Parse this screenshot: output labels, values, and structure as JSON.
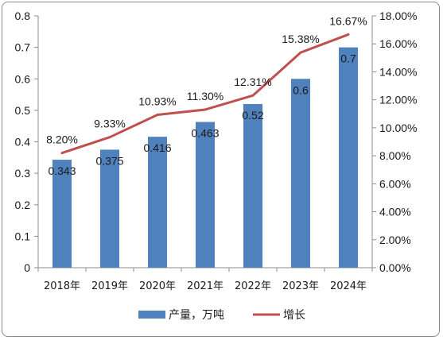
{
  "chart_data": {
    "type": "bar",
    "categories": [
      "2018年",
      "2019年",
      "2020年",
      "2021年",
      "2022年",
      "2023年",
      "2024年"
    ],
    "series": [
      {
        "name": "产量，万吨",
        "type": "bar",
        "axis": "left",
        "values": [
          0.343,
          0.375,
          0.416,
          0.463,
          0.52,
          0.6,
          0.7
        ],
        "labels": [
          "0.343",
          "0.375",
          "0.416",
          "0.463",
          "0.52",
          "0.6",
          "0.7"
        ],
        "color": "#4f81bd"
      },
      {
        "name": "增长",
        "type": "line",
        "axis": "right",
        "values": [
          8.2,
          9.33,
          10.93,
          11.3,
          12.31,
          15.38,
          16.67
        ],
        "labels": [
          "8.20%",
          "9.33%",
          "10.93%",
          "11.30%",
          "12.31%",
          "15.38%",
          "16.67%"
        ],
        "color": "#c0504d"
      }
    ],
    "y_left": {
      "range": [
        0,
        0.8
      ],
      "ticks": [
        "0",
        "0.1",
        "0.2",
        "0.3",
        "0.4",
        "0.5",
        "0.6",
        "0.7",
        "0.8"
      ]
    },
    "y_right": {
      "range": [
        0,
        18
      ],
      "ticks": [
        "0.00%",
        "2.00%",
        "4.00%",
        "6.00%",
        "8.00%",
        "10.00%",
        "12.00%",
        "14.00%",
        "16.00%",
        "18.00%"
      ]
    },
    "grid": false,
    "legend_position": "bottom"
  }
}
